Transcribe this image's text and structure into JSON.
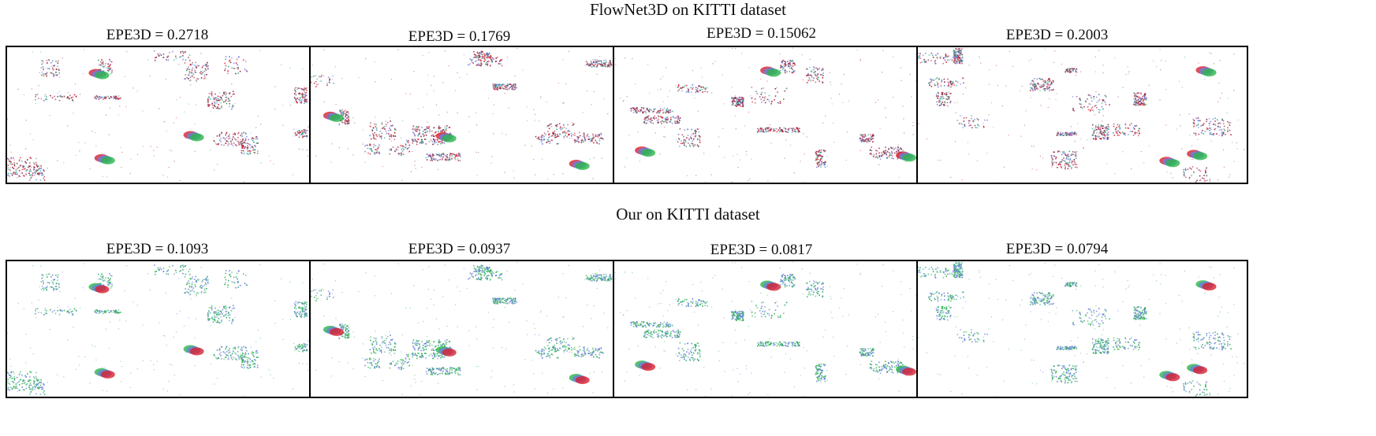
{
  "rows": [
    {
      "title": "FlowNet3D on KITTI dataset",
      "panels": [
        {
          "caption": "EPE3D = 0.2718"
        },
        {
          "caption": "EPE3D = 0.1769"
        },
        {
          "caption": "EPE3D = 0.15062"
        },
        {
          "caption": "EPE3D = 0.2003"
        }
      ]
    },
    {
      "title": "Our on KITTI dataset",
      "panels": [
        {
          "caption": "EPE3D = 0.1093"
        },
        {
          "caption": "EPE3D = 0.0937"
        },
        {
          "caption": "EPE3D = 0.0817"
        },
        {
          "caption": "EPE3D = 0.0794"
        }
      ]
    }
  ],
  "colors": {
    "red": "#d8202e",
    "green": "#2bb54a",
    "blue": "#6a7fe0",
    "teal": "#3aa58a",
    "maroon": "#8c2a4a",
    "border": "#000000"
  }
}
